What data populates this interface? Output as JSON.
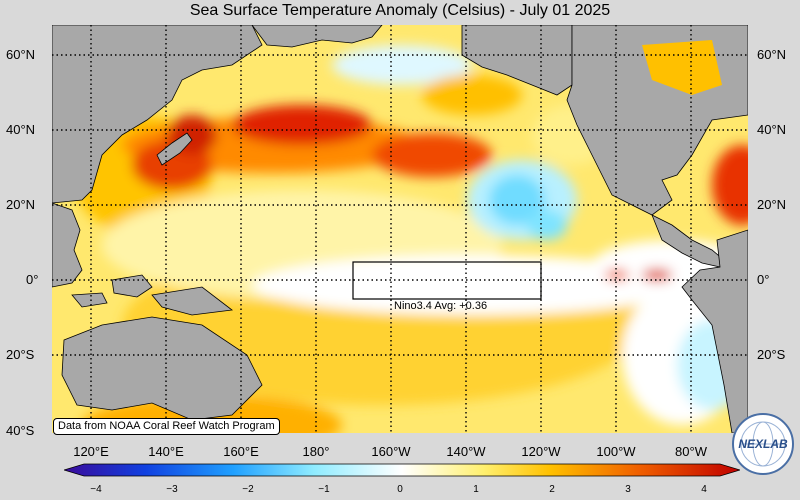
{
  "title": "Sea Surface Temperature Anomaly (Celsius) - July 01 2025",
  "lat_labels": [
    "60°N",
    "40°N",
    "20°N",
    "0°",
    "20°S",
    "40°S"
  ],
  "lon_labels": [
    "120°E",
    "140°E",
    "160°E",
    "180°",
    "160°W",
    "140°W",
    "120°W",
    "100°W",
    "80°W"
  ],
  "credit": "Data from NOAA Coral Reef Watch Program",
  "nino_box": {
    "label": "Nino3.4 Avg: +0.36",
    "value": 0.36,
    "lat_range": [
      -5,
      5
    ],
    "lon_range": [
      -170,
      -120
    ]
  },
  "colorbar": {
    "ticks": [
      "−4",
      "−3",
      "−2",
      "−1",
      "0",
      "1",
      "2",
      "3",
      "4"
    ],
    "range": [
      -4,
      4
    ],
    "colors": [
      "#3a0a9a",
      "#1060e0",
      "#40c0ff",
      "#b8f4ff",
      "#ffffff",
      "#fff070",
      "#ffc000",
      "#f06000",
      "#c00000"
    ]
  },
  "colors": {
    "land": "#a8a8a8",
    "ocean_base": "#ffe56a",
    "warm": "#e02000",
    "cool": "#7fe8ff",
    "background": "#d9d9d9"
  },
  "logo": {
    "text": "NEXLAB"
  }
}
